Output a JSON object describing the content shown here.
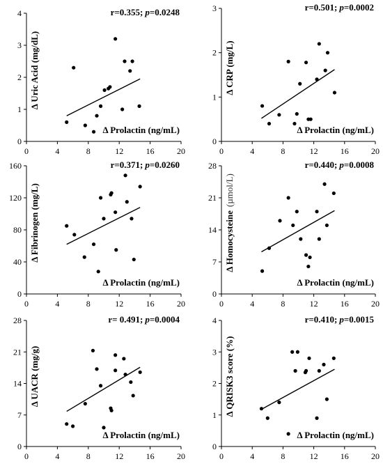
{
  "chart_data": [
    {
      "type": "scatter",
      "annotation": {
        "r": "r=0.355;",
        "p_label": "p",
        "p_value": "=0.0248"
      },
      "xlabel": "Δ Prolactin (ng/mL)",
      "ylabel": "Δ Uric Acid (mg/dL)",
      "xlim": [
        0,
        20
      ],
      "ylim": [
        0,
        4
      ],
      "xticks": [
        0,
        4,
        8,
        12,
        16,
        20
      ],
      "yticks": [
        0,
        1,
        2,
        3,
        4
      ],
      "trend": {
        "x": [
          5.2,
          14.7
        ],
        "y": [
          0.8,
          1.95
        ]
      },
      "x": [
        5.2,
        6.1,
        7.6,
        8.7,
        9.1,
        9.6,
        10.1,
        10.6,
        10.8,
        11.5,
        12.4,
        12.7,
        13.4,
        13.7,
        14.6
      ],
      "y": [
        0.6,
        2.3,
        0.5,
        0.3,
        0.8,
        1.1,
        1.6,
        1.65,
        1.7,
        3.2,
        1.0,
        2.5,
        2.2,
        2.5,
        1.1
      ]
    },
    {
      "type": "scatter",
      "annotation": {
        "r": "r=0.501;",
        "p_label": "p",
        "p_value": "=0.0002"
      },
      "xlabel": "Δ Prolactin (ng/mL)",
      "ylabel": "Δ CRP (mg/L)",
      "xlim": [
        0,
        20
      ],
      "ylim": [
        0,
        3
      ],
      "xticks": [
        0,
        4,
        8,
        12,
        16,
        20
      ],
      "yticks": [
        0,
        1,
        2,
        3
      ],
      "trend": {
        "x": [
          5.2,
          14.7
        ],
        "y": [
          0.52,
          1.62
        ]
      },
      "x": [
        5.3,
        6.2,
        7.5,
        8.7,
        9.5,
        9.8,
        10.2,
        11.0,
        11.3,
        11.6,
        12.4,
        12.7,
        13.5,
        13.8,
        14.7
      ],
      "y": [
        0.8,
        0.4,
        0.6,
        1.8,
        0.4,
        0.62,
        1.3,
        1.78,
        0.5,
        0.5,
        1.4,
        2.2,
        1.6,
        2.0,
        1.1
      ]
    },
    {
      "type": "scatter",
      "annotation": {
        "r": "r=0.371;",
        "p_label": "p",
        "p_value": "=0.0260"
      },
      "xlabel": "Δ Prolactin (ng/mL)",
      "ylabel": "Δ Fibrinogen (mg/L)",
      "xlim": [
        0,
        20
      ],
      "ylim": [
        0,
        160
      ],
      "xticks": [
        0,
        4,
        8,
        12,
        16,
        20
      ],
      "yticks": [
        0,
        40,
        80,
        120,
        160
      ],
      "trend": {
        "x": [
          5.2,
          14.7
        ],
        "y": [
          62,
          108
        ]
      },
      "x": [
        5.2,
        6.2,
        7.5,
        8.7,
        9.3,
        9.6,
        10.0,
        10.9,
        11.0,
        11.5,
        11.6,
        12.8,
        13.0,
        13.6,
        13.9,
        14.7
      ],
      "y": [
        85,
        74,
        46,
        62,
        28,
        120,
        94,
        124,
        126,
        102,
        55,
        148,
        115,
        94,
        43,
        134
      ]
    },
    {
      "type": "scatter",
      "annotation": {
        "r": "r=0.440;",
        "p_label": "p",
        "p_value": "=0.0008"
      },
      "xlabel": "Δ Prolactin (ng/mL)",
      "ylabel": "Δ Homocysteine",
      "ylabel_unit": "(µmol/L)",
      "xlim": [
        0,
        20
      ],
      "ylim": [
        0,
        28
      ],
      "xticks": [
        0,
        4,
        8,
        12,
        16,
        20
      ],
      "yticks": [
        0,
        7,
        14,
        21,
        28
      ],
      "trend": {
        "x": [
          5.2,
          14.7
        ],
        "y": [
          9.2,
          18.2
        ]
      },
      "x": [
        5.3,
        6.2,
        7.6,
        8.7,
        9.3,
        9.8,
        10.3,
        11.0,
        11.3,
        11.5,
        12.4,
        12.7,
        13.4,
        13.7,
        14.6
      ],
      "y": [
        5,
        10,
        16,
        21,
        15,
        18,
        12,
        8.5,
        6,
        8,
        18,
        12,
        24,
        15,
        22
      ]
    },
    {
      "type": "scatter",
      "annotation": {
        "r": "r= 0.491;",
        "p_label": "p",
        "p_value": "=0.0004"
      },
      "xlabel": "Δ Prolactin (ng/mL)",
      "ylabel": "Δ UACR (mg/g)",
      "xlim": [
        0,
        20
      ],
      "ylim": [
        0,
        28
      ],
      "xticks": [
        0,
        4,
        8,
        12,
        16,
        20
      ],
      "yticks": [
        0,
        7,
        14,
        21,
        28
      ],
      "trend": {
        "x": [
          5.2,
          14.7
        ],
        "y": [
          7.8,
          17.6
        ]
      },
      "x": [
        5.2,
        6.0,
        7.6,
        8.6,
        9.1,
        9.6,
        10.0,
        10.9,
        11.0,
        11.5,
        11.5,
        12.6,
        12.8,
        13.5,
        13.8,
        14.7
      ],
      "y": [
        5.0,
        4.5,
        9.5,
        21.3,
        17.2,
        13.5,
        4.2,
        8.5,
        8.0,
        20.3,
        16.9,
        19.5,
        16.0,
        14.3,
        11.3,
        16.5
      ]
    },
    {
      "type": "scatter",
      "annotation": {
        "r": "r=0.410;",
        "p_label": "p",
        "p_value": "=0.0015"
      },
      "xlabel": "Δ Prolactin (ng/mL)",
      "ylabel": "Δ QRISK3 score (%)",
      "xlim": [
        0,
        20
      ],
      "ylim": [
        0,
        4
      ],
      "xticks": [
        0,
        4,
        8,
        12,
        16,
        20
      ],
      "yticks": [
        0,
        1,
        2,
        3,
        4
      ],
      "trend": {
        "x": [
          5.2,
          14.7
        ],
        "y": [
          1.18,
          2.45
        ]
      },
      "x": [
        5.2,
        6.0,
        7.5,
        8.7,
        9.2,
        9.6,
        9.9,
        10.9,
        11.0,
        11.4,
        12.4,
        12.7,
        13.3,
        13.7,
        14.6
      ],
      "y": [
        1.2,
        0.9,
        1.4,
        0.4,
        3.0,
        2.4,
        3.0,
        2.35,
        2.4,
        2.8,
        0.9,
        2.4,
        2.6,
        1.5,
        2.8
      ]
    }
  ]
}
